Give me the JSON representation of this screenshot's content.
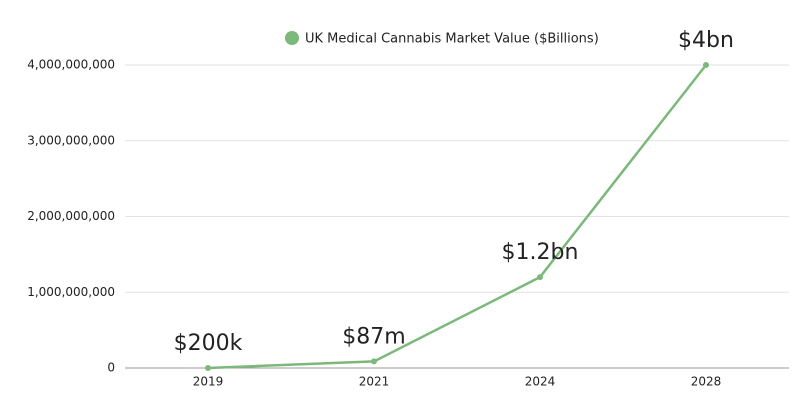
{
  "chart_data": {
    "type": "line",
    "categories": [
      "2019",
      "2021",
      "2024",
      "2028"
    ],
    "series": [
      {
        "name": "UK Medical Cannabis Market Value ($Billions)",
        "color": "#7cb87a",
        "values": [
          200000,
          87000000,
          1200000000,
          4000000000
        ],
        "value_labels": [
          "$200k",
          "$87m",
          "$1.2bn",
          "$4bn"
        ]
      }
    ],
    "ylim": [
      0,
      4000000000
    ],
    "yticks": [
      0,
      {
        "value": 1000000000,
        "label": "1,000,000,000"
      },
      {
        "value": 2000000000,
        "label": "2,000,000,000"
      },
      {
        "value": 3000000000,
        "label": "3,000,000,000"
      },
      {
        "value": 4000000000,
        "label": "4,000,000,000"
      }
    ],
    "grid": true,
    "legend": "top"
  }
}
